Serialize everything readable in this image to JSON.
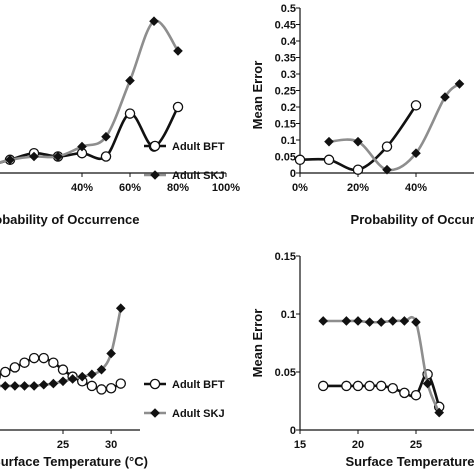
{
  "chart_data": [
    {
      "type": "line",
      "panel": "top-left",
      "xlabel": "Probability of Occurrence",
      "ylabel": "",
      "x": [
        0,
        10,
        20,
        30,
        40,
        50,
        60,
        70,
        80
      ],
      "xlim": [
        0,
        100
      ],
      "xticks": [
        "40%",
        "60%",
        "80%",
        "100%"
      ],
      "xtick_values": [
        40,
        60,
        80,
        100
      ],
      "ylim": [
        0,
        0.5
      ],
      "series": [
        {
          "name": "Adult BFT",
          "values": [
            0.02,
            0.04,
            0.06,
            0.05,
            0.06,
            0.05,
            0.18,
            0.08,
            0.2
          ]
        },
        {
          "name": "Adult SKJ",
          "values": [
            0.02,
            0.04,
            0.05,
            0.05,
            0.08,
            0.11,
            0.28,
            0.46,
            0.37
          ]
        }
      ],
      "legend": "right"
    },
    {
      "type": "line",
      "panel": "top-right",
      "xlabel": "Probability of Occurrence",
      "ylabel": "Mean Error",
      "xlim": [
        0,
        60
      ],
      "xticks": [
        "0%",
        "20%",
        "40%"
      ],
      "xtick_values": [
        0,
        20,
        40
      ],
      "ylim": [
        0,
        0.5
      ],
      "yticks": [
        "0",
        "0.05",
        "0.1",
        "0.15",
        "0.2",
        "0.25",
        "0.3",
        "0.35",
        "0.4",
        "0.45",
        "0.5"
      ],
      "ytick_values": [
        0,
        0.05,
        0.1,
        0.15,
        0.2,
        0.25,
        0.3,
        0.35,
        0.4,
        0.45,
        0.5
      ],
      "series": [
        {
          "name": "Adult BFT",
          "x": [
            0,
            10,
            20,
            30,
            40
          ],
          "values": [
            0.04,
            0.04,
            0.01,
            0.08,
            0.205
          ]
        },
        {
          "name": "Adult SKJ",
          "x": [
            10,
            20,
            30,
            40,
            50,
            55
          ],
          "values": [
            0.095,
            0.095,
            0.01,
            0.06,
            0.23,
            0.27
          ]
        }
      ]
    },
    {
      "type": "line",
      "panel": "bottom-left",
      "xlabel": "Surface Temperature (°C)",
      "ylabel": "",
      "x": [
        17,
        18,
        19,
        20,
        21,
        22,
        23,
        24,
        25,
        26,
        27,
        28,
        29,
        30,
        31
      ],
      "xlim": [
        17,
        33
      ],
      "xticks": [
        "25",
        "30"
      ],
      "xtick_values": [
        25,
        30
      ],
      "ylim": [
        0,
        0.15
      ],
      "series": [
        {
          "name": "Adult BFT",
          "values": [
            0.042,
            0.046,
            0.05,
            0.054,
            0.058,
            0.062,
            0.062,
            0.058,
            0.052,
            0.046,
            0.042,
            0.038,
            0.035,
            0.036,
            0.04
          ]
        },
        {
          "name": "Adult SKJ",
          "values": [
            0.038,
            0.038,
            0.038,
            0.038,
            0.038,
            0.038,
            0.039,
            0.04,
            0.042,
            0.044,
            0.046,
            0.048,
            0.052,
            0.066,
            0.105
          ]
        }
      ],
      "legend": "right"
    },
    {
      "type": "line",
      "panel": "bottom-right",
      "xlabel": "Surface Temperature",
      "ylabel": "Mean Error",
      "xlim": [
        15,
        30
      ],
      "xticks": [
        "15",
        "20",
        "25"
      ],
      "xtick_values": [
        15,
        20,
        25
      ],
      "ylim": [
        0,
        0.15
      ],
      "yticks": [
        "0",
        "0.05",
        "0.1",
        "0.15"
      ],
      "ytick_values": [
        0,
        0.05,
        0.1,
        0.15
      ],
      "series": [
        {
          "name": "Adult BFT",
          "x": [
            17,
            19,
            20,
            21,
            22,
            23,
            24,
            25,
            26,
            27
          ],
          "values": [
            0.038,
            0.038,
            0.038,
            0.038,
            0.038,
            0.036,
            0.032,
            0.03,
            0.048,
            0.02
          ]
        },
        {
          "name": "Adult SKJ",
          "x": [
            17,
            19,
            20,
            21,
            22,
            23,
            24,
            25,
            26,
            27
          ],
          "values": [
            0.094,
            0.094,
            0.094,
            0.093,
            0.093,
            0.094,
            0.094,
            0.093,
            0.04,
            0.015
          ]
        }
      ]
    }
  ]
}
